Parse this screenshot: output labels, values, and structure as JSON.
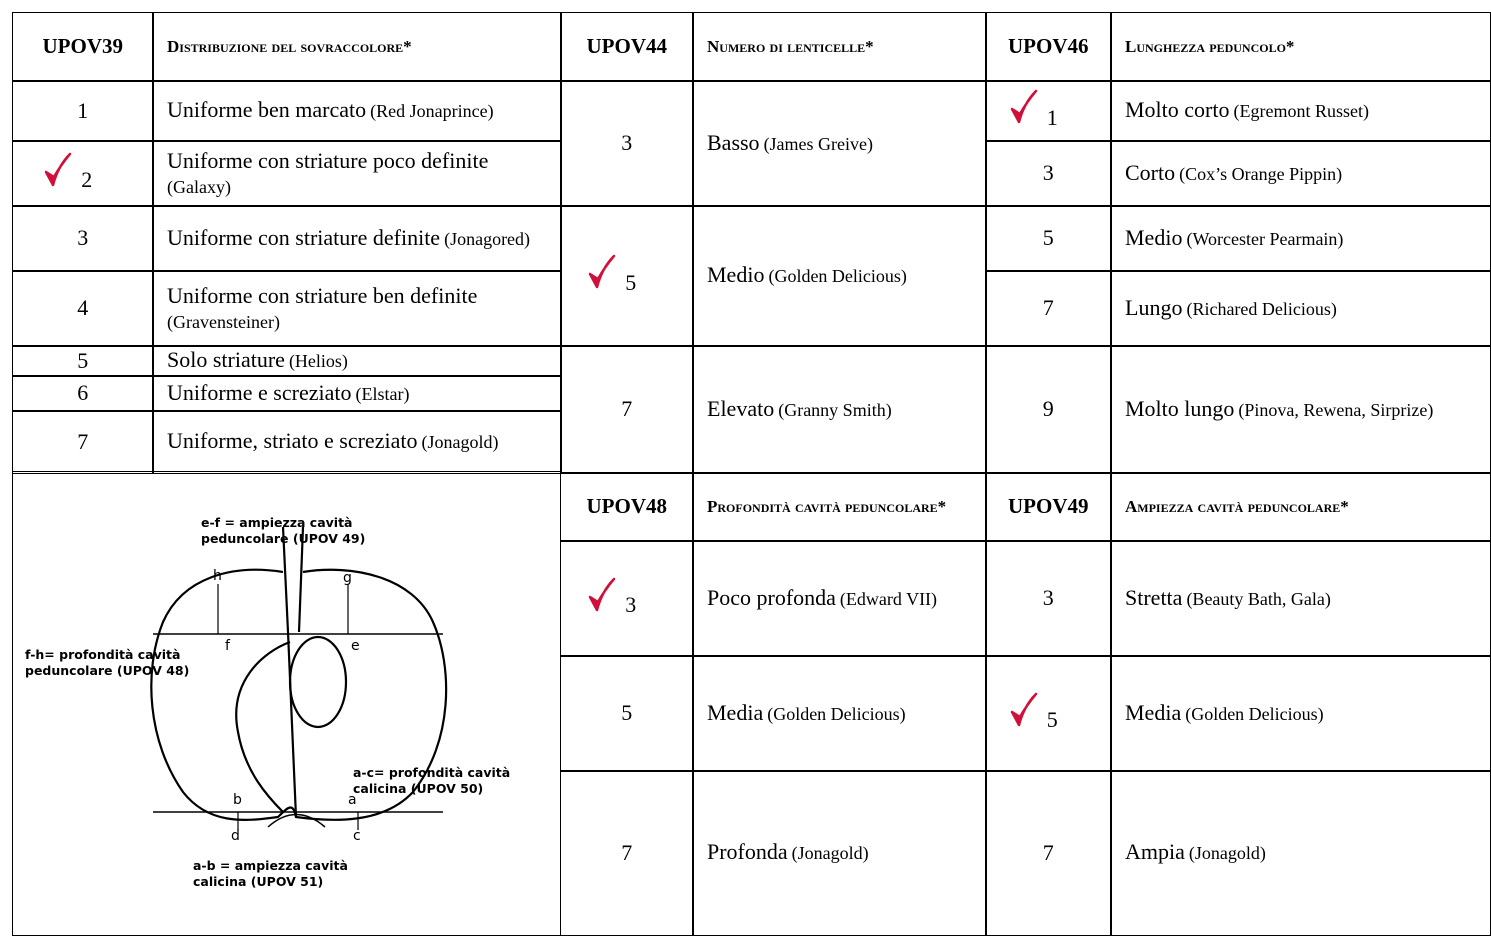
{
  "tables": [
    {
      "code": "UPOV39",
      "title": "Distribuzione del sovraccolore*",
      "rows": [
        {
          "code": "1",
          "text": "Uniforme ben marcato",
          "ref": "(Red Jonaprince)"
        },
        {
          "code": "2",
          "text": "Uniforme con striature poco definite",
          "ref": "(Galaxy)"
        },
        {
          "code": "3",
          "text": "Uniforme con striature definite",
          "ref": "(Jonagored)"
        },
        {
          "code": "4",
          "text": "Uniforme con striature ben definite",
          "ref": "(Gravensteiner)"
        },
        {
          "code": "5",
          "text": "Solo striature",
          "ref": "(Helios)"
        },
        {
          "code": "6",
          "text": "Uniforme e screziato",
          "ref": "(Elstar)"
        },
        {
          "code": "7",
          "text": "Uniforme, striato e screziato",
          "ref": "(Jonagold)"
        }
      ]
    },
    {
      "code": "UPOV44",
      "title": "Numero di lenticelle*",
      "rows": [
        {
          "code": "3",
          "text": "Basso",
          "ref": "(James Greive)"
        },
        {
          "code": "5",
          "text": "Medio",
          "ref": "(Golden Delicious)"
        },
        {
          "code": "7",
          "text": "Elevato",
          "ref": "(Granny Smith)"
        }
      ]
    },
    {
      "code": "UPOV46",
      "title": "Lunghezza peduncolo*",
      "rows": [
        {
          "code": "1",
          "text": "Molto corto",
          "ref": "(Egremont Russet)"
        },
        {
          "code": "3",
          "text": "Corto",
          "ref": "(Cox’s Orange Pippin)"
        },
        {
          "code": "5",
          "text": "Medio",
          "ref": "(Worcester Pearmain)"
        },
        {
          "code": "7",
          "text": "Lungo",
          "ref": "(Richared Delicious)"
        },
        {
          "code": "9",
          "text": "Molto lungo",
          "ref": "(Pinova, Rewena, Sirprize)"
        }
      ]
    },
    {
      "code": "UPOV48",
      "title": "Profondità cavità peduncolare*",
      "rows": [
        {
          "code": "3",
          "text": "Poco profonda",
          "ref": "(Edward VII)"
        },
        {
          "code": "5",
          "text": "Media",
          "ref": "(Golden Delicious)"
        },
        {
          "code": "7",
          "text": "Profonda",
          "ref": "(Jonagold)"
        }
      ]
    },
    {
      "code": "UPOV49",
      "title": "Ampiezza cavità peduncolare*",
      "rows": [
        {
          "code": "3",
          "text": "Stretta",
          "ref": "(Beauty Bath, Gala)"
        },
        {
          "code": "5",
          "text": "Media",
          "ref": "(Golden Delicious)"
        },
        {
          "code": "7",
          "text": "Ampia",
          "ref": "(Jonagold)"
        }
      ]
    }
  ],
  "diagram": {
    "labels": [
      "e-f = ampiezza cavità",
      "peduncolare (UPOV 49)",
      "f-h= profondità cavità",
      "peduncolare (UPOV 48)",
      "a-c= profondità cavità",
      "calicina (UPOV 50)",
      "a-b = ampiezza cavità",
      "calicina (UPOV 51)"
    ],
    "letters": [
      "h",
      "g",
      "f",
      "e",
      "b",
      "a",
      "d",
      "c"
    ]
  }
}
